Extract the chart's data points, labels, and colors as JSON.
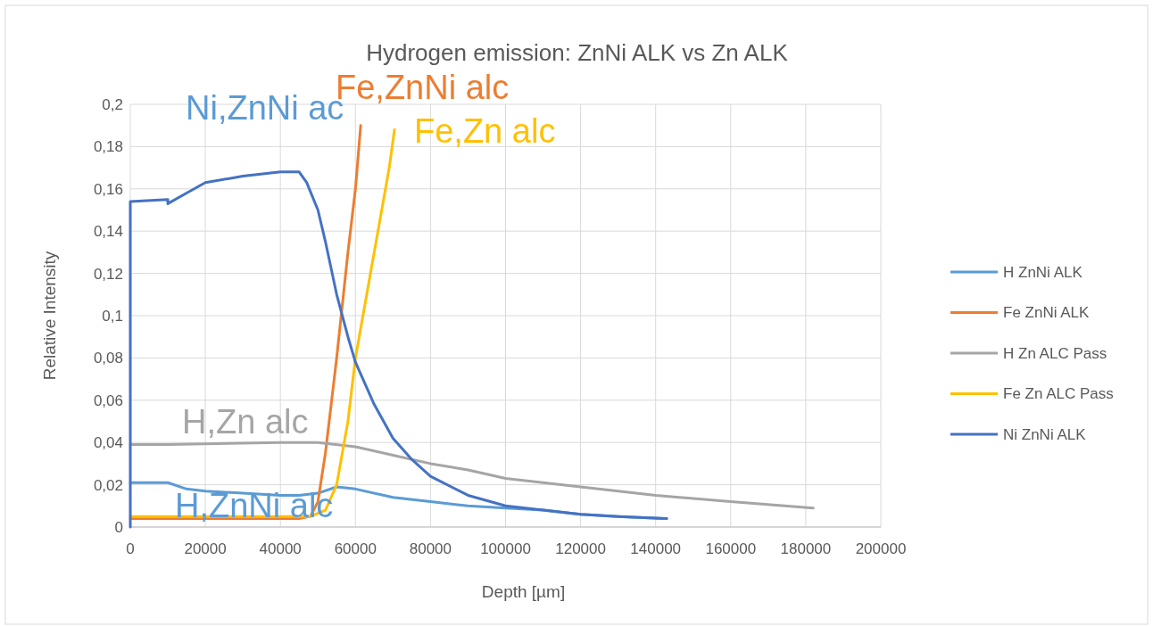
{
  "chart_data": {
    "type": "line",
    "title": "Hydrogen emission: ZnNi ALK vs Zn ALK",
    "xlabel": "Depth [µm]",
    "ylabel": "Relative Intensity",
    "xlim": [
      0,
      200000
    ],
    "xticks": [
      0,
      20000,
      40000,
      60000,
      80000,
      100000,
      120000,
      140000,
      160000,
      180000,
      200000
    ],
    "ylim": [
      0,
      0.2
    ],
    "yticks": [
      0,
      {
        "value": 0.02,
        "label": "0,02"
      },
      {
        "value": 0.04,
        "label": "0,04"
      },
      {
        "value": 0.06,
        "label": "0,06"
      },
      {
        "value": 0.08,
        "label": "0,08"
      },
      {
        "value": 0.1,
        "label": "0,1"
      },
      {
        "value": 0.12,
        "label": "0,12"
      },
      {
        "value": 0.14,
        "label": "0,14"
      },
      {
        "value": 0.16,
        "label": "0,16"
      },
      {
        "value": 0.18,
        "label": "0,18"
      },
      {
        "value": 0.2,
        "label": "0,2"
      }
    ],
    "grid": true,
    "legend": "right",
    "marker": "none",
    "line_style": "solid",
    "series": [
      {
        "name": "H ZnNi ALK",
        "color": "#5b9bd5",
        "x": [
          0,
          10000,
          15000,
          20000,
          30000,
          40000,
          45000,
          50000,
          55000,
          60000,
          70000,
          80000,
          90000,
          100000,
          110000,
          120000,
          130000,
          142000
        ],
        "values": [
          0.021,
          0.021,
          0.018,
          0.017,
          0.016,
          0.015,
          0.015,
          0.016,
          0.019,
          0.018,
          0.014,
          0.012,
          0.01,
          0.009,
          0.008,
          0.006,
          0.005,
          0.004
        ]
      },
      {
        "name": "Fe ZnNi ALK",
        "color": "#ed7d31",
        "x": [
          0,
          45000,
          48000,
          50000,
          52000,
          55000,
          58000,
          60000,
          61400
        ],
        "values": [
          0.004,
          0.004,
          0.005,
          0.012,
          0.035,
          0.08,
          0.13,
          0.16,
          0.19
        ]
      },
      {
        "name": "H Zn ALC Pass",
        "color": "#a5a5a5",
        "x": [
          0,
          10000,
          40000,
          50000,
          60000,
          70000,
          80000,
          90000,
          100000,
          120000,
          140000,
          160000,
          182000
        ],
        "values": [
          0.039,
          0.039,
          0.04,
          0.04,
          0.038,
          0.034,
          0.03,
          0.027,
          0.023,
          0.019,
          0.015,
          0.012,
          0.009
        ]
      },
      {
        "name": "Fe Zn ALC Pass",
        "color": "#ffc000",
        "x": [
          0,
          48000,
          52000,
          55000,
          58000,
          60000,
          63000,
          66000,
          69000,
          70400
        ],
        "values": [
          0.005,
          0.005,
          0.008,
          0.02,
          0.05,
          0.08,
          0.11,
          0.14,
          0.17,
          0.188
        ]
      },
      {
        "name": "Ni ZnNi ALK",
        "color": "#4472c4",
        "x": [
          0,
          0,
          10000,
          10000,
          15000,
          20000,
          30000,
          40000,
          45000,
          47000,
          50000,
          52000,
          55000,
          58000,
          60000,
          65000,
          70000,
          75000,
          80000,
          90000,
          100000,
          110000,
          120000,
          130000,
          143000
        ],
        "values": [
          0,
          0.154,
          0.155,
          0.153,
          0.158,
          0.163,
          0.166,
          0.168,
          0.168,
          0.163,
          0.15,
          0.135,
          0.11,
          0.09,
          0.078,
          0.058,
          0.042,
          0.032,
          0.024,
          0.015,
          0.01,
          0.008,
          0.006,
          0.005,
          0.004
        ]
      }
    ],
    "annotations": [
      "Ni,ZnNi ac",
      "Fe,ZnNi alc",
      "Fe,Zn alc",
      "H,Zn alc",
      "H,ZnNi alc"
    ]
  }
}
